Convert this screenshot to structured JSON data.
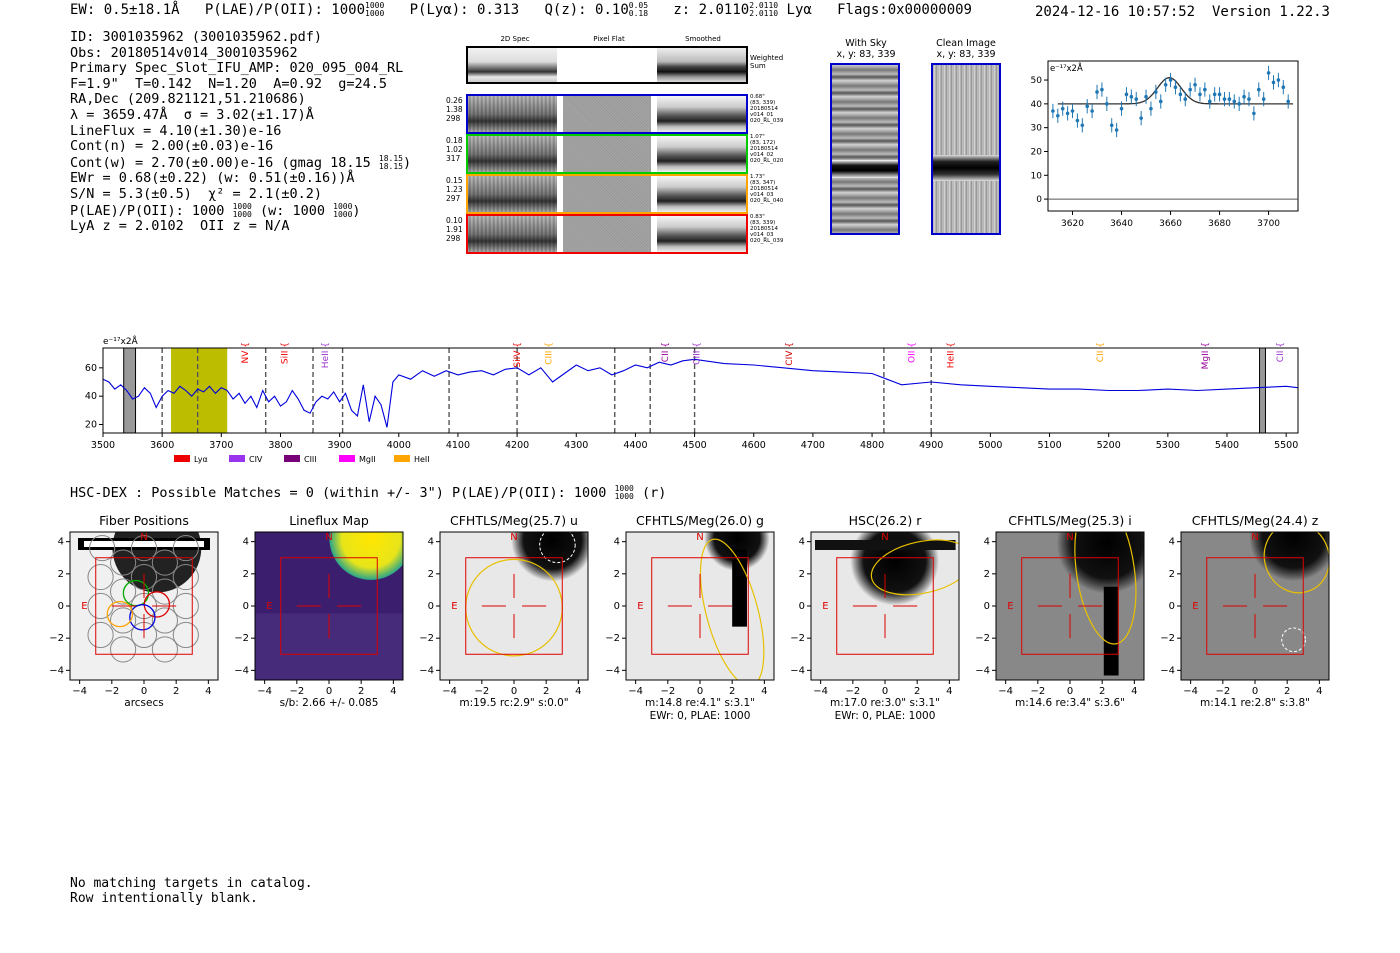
{
  "header": {
    "ew": "EW: 0.5±18.1Å",
    "plae_label": "P(LAE)/P(OII): 1000",
    "plae_hi": "1000",
    "plae_lo": "1000",
    "plya": "P(Lyα): 0.313",
    "qz_label": "Q(z): 0.10",
    "qz_hi": "0.05",
    "qz_lo": "0.18",
    "z_label": "z: 2.0110",
    "z_hi": "2.0110",
    "z_lo": "2.0110",
    "z_line": "Lyα",
    "flags": "Flags:0x00000009",
    "timestamp": "2024-12-16 10:57:52",
    "version": "Version 1.22.3"
  },
  "info": {
    "id": "ID: 3001035962 (3001035962.pdf)",
    "obs": "Obs: 20180514v014_3001035962",
    "primary": "Primary Spec_Slot_IFU_AMP: 020_095_004_RL",
    "params": "F=1.9\"  T=0.142  N=1.20  A=0.92  g=24.5",
    "radec": "RA,Dec (209.821121,51.210686)",
    "lambda": "λ = 3659.47Å  σ = 3.02(±1.17)Å",
    "lineflux": "LineFlux = 4.10(±1.30)e-16",
    "contn": "Cont(n) = 2.00(±0.03)e-16",
    "contw": "Cont(w) = 2.70(±0.00)e-16 (gmag 18.15",
    "contw_hi": "18.15",
    "contw_lo": "18.15",
    "contw_end": ")",
    "ewr": "EWr = 0.68(±0.22) (w: 0.51(±0.16))Å",
    "sn": "S/N = 5.3(±0.5)  χ² = 2.1(±0.2)",
    "plae": "P(LAE)/P(OII): 1000",
    "plae_hi": "1000",
    "plae_lo": "1000",
    "plae_w": "(w: 1000",
    "plae_w_hi": "1000",
    "plae_w_lo": "1000",
    "plae_w_end": ")",
    "lya": "LyA z = 2.0102  OII z = N/A"
  },
  "spec2d": {
    "columns": [
      "2D Spec",
      "Pixel Flat",
      "Smoothed"
    ],
    "weighted_sum": "Weighted\nSum",
    "rows": [
      {
        "left": "0.26\n1.38\n298",
        "right": "0.68\"\n(83, 339)\n20180514\nv014_01\n020_RL_039",
        "color": "#0000cc"
      },
      {
        "left": "0.18\n1.02\n317",
        "right": "1.07\"\n(83, 172)\n20180514\nv014_02\n020_RL_020",
        "color": "#00cc00"
      },
      {
        "left": "0.15\n1.23\n297",
        "right": "1.73\"\n(83, 347)\n20180514\nv014_03\n020_RL_040",
        "color": "#ffa500"
      },
      {
        "left": "0.10\n1.91\n298",
        "right": "0.83\"\n(83, 339)\n20180514\nv014_03\n020_RL_039",
        "color": "#ee0000"
      }
    ]
  },
  "sky": {
    "with_sky_title": "With Sky",
    "with_sky_xy": "x, y: 83, 339",
    "clean_title": "Clean Image",
    "clean_xy": "x, y: 83, 339"
  },
  "zoom_chart": {
    "type": "scatter",
    "ylabel": "e⁻¹⁷x2Å",
    "xlim": [
      3610,
      3712
    ],
    "ylim": [
      -5,
      58
    ],
    "xticks": [
      3620,
      3640,
      3660,
      3680,
      3700
    ],
    "yticks": [
      0,
      10,
      20,
      30,
      40,
      50
    ],
    "x": [
      3612,
      3614,
      3616,
      3618,
      3620,
      3622,
      3624,
      3626,
      3628,
      3630,
      3632,
      3634,
      3636,
      3638,
      3640,
      3642,
      3644,
      3646,
      3648,
      3650,
      3652,
      3654,
      3656,
      3658,
      3660,
      3662,
      3664,
      3666,
      3668,
      3670,
      3672,
      3674,
      3676,
      3678,
      3680,
      3682,
      3684,
      3686,
      3688,
      3690,
      3692,
      3694,
      3696,
      3698,
      3700,
      3702,
      3704,
      3706,
      3708
    ],
    "y": [
      37,
      35,
      38,
      36,
      37,
      33,
      31,
      39,
      37,
      45,
      46,
      40,
      31,
      29,
      38,
      44,
      43,
      42,
      34,
      43,
      38,
      45,
      41,
      48,
      50,
      47,
      44,
      42,
      46,
      48,
      44,
      46,
      41,
      44,
      44,
      42,
      42,
      41,
      40,
      43,
      42,
      36,
      46,
      42,
      53,
      49,
      50,
      47,
      41
    ],
    "fit_baseline": 40,
    "fit_center": 3659.5,
    "fit_amp": 11,
    "fit_sigma": 3.02
  },
  "chart_data": {
    "type": "line",
    "title": "",
    "ylabel": "e⁻¹⁷x2Å",
    "xlabel": "",
    "xlim": [
      3500,
      5520
    ],
    "ylim": [
      14,
      74
    ],
    "xticks": [
      3500,
      3600,
      3700,
      3800,
      3900,
      4000,
      4100,
      4200,
      4300,
      4400,
      4500,
      4600,
      4700,
      4800,
      4900,
      5000,
      5100,
      5200,
      5300,
      5400,
      5500
    ],
    "yticks": [
      20,
      40,
      60
    ],
    "x": [
      3500,
      3510,
      3520,
      3530,
      3540,
      3550,
      3560,
      3570,
      3580,
      3590,
      3600,
      3610,
      3620,
      3630,
      3640,
      3650,
      3660,
      3670,
      3680,
      3690,
      3700,
      3710,
      3720,
      3730,
      3740,
      3750,
      3760,
      3770,
      3780,
      3790,
      3800,
      3810,
      3820,
      3830,
      3840,
      3850,
      3860,
      3870,
      3880,
      3890,
      3900,
      3910,
      3920,
      3930,
      3940,
      3950,
      3960,
      3970,
      3980,
      3990,
      4000,
      4020,
      4040,
      4060,
      4080,
      4100,
      4120,
      4140,
      4160,
      4180,
      4200,
      4220,
      4240,
      4260,
      4280,
      4300,
      4320,
      4340,
      4360,
      4380,
      4400,
      4420,
      4440,
      4460,
      4480,
      4500,
      4550,
      4600,
      4650,
      4700,
      4750,
      4800,
      4850,
      4900,
      4950,
      5000,
      5050,
      5100,
      5150,
      5200,
      5250,
      5300,
      5350,
      5400,
      5450,
      5500,
      5520
    ],
    "y": [
      52,
      50,
      45,
      48,
      44,
      38,
      40,
      46,
      42,
      32,
      40,
      44,
      42,
      47,
      44,
      40,
      45,
      43,
      47,
      42,
      46,
      44,
      38,
      42,
      35,
      40,
      32,
      44,
      36,
      40,
      33,
      36,
      44,
      38,
      30,
      28,
      36,
      40,
      38,
      43,
      36,
      42,
      30,
      26,
      48,
      22,
      40,
      34,
      18,
      50,
      55,
      52,
      58,
      54,
      58,
      55,
      57,
      58,
      55,
      59,
      60,
      55,
      60,
      50,
      56,
      62,
      58,
      60,
      55,
      58,
      62,
      60,
      64,
      62,
      65,
      66,
      63,
      62,
      60,
      58,
      57,
      56,
      48,
      50,
      48,
      47,
      46,
      45,
      45,
      44,
      44,
      45,
      44,
      45,
      46,
      47,
      46
    ],
    "shaded_bands": [
      {
        "from": 3615,
        "to": 3710,
        "color": "#bcbd00"
      },
      {
        "from": 3535,
        "to": 3555,
        "color": "#999999"
      },
      {
        "from": 5455,
        "to": 5465,
        "color": "#999999"
      }
    ],
    "dashed_lines": [
      3600,
      3660,
      3775,
      3855,
      3905,
      4085,
      4200,
      4365,
      4425,
      4500,
      4820,
      4900
    ],
    "line_labels": [
      {
        "text": "NV",
        "x": 3745,
        "color": "#ee0000"
      },
      {
        "text": "SiII",
        "x": 3812,
        "color": "#ee0000"
      },
      {
        "text": "HeII",
        "x": 3880,
        "color": "#9933cc"
      },
      {
        "text": "SiIV",
        "x": 4205,
        "color": "#ee0000"
      },
      {
        "text": "CIII",
        "x": 4258,
        "color": "#ffa500"
      },
      {
        "text": "CII",
        "x": 4455,
        "color": "#990099"
      },
      {
        "text": "CIII",
        "x": 4508,
        "color": "#9933cc"
      },
      {
        "text": "CIV",
        "x": 4665,
        "color": "#cc0000"
      },
      {
        "text": "OII",
        "x": 4872,
        "color": "#ff00ff"
      },
      {
        "text": "HeII",
        "x": 4938,
        "color": "#ee0000"
      },
      {
        "text": "CII",
        "x": 5190,
        "color": "#ffa500"
      },
      {
        "text": "MgII",
        "x": 5368,
        "color": "#990099"
      },
      {
        "text": "CII",
        "x": 5495,
        "color": "#9933cc"
      }
    ],
    "legend": [
      {
        "label": "Lyα",
        "color": "#ee0000"
      },
      {
        "label": "CIV",
        "color": "#9933ee"
      },
      {
        "label": "CIII",
        "color": "#770077"
      },
      {
        "label": "MgII",
        "color": "#ff00ff"
      },
      {
        "label": "HeII",
        "color": "#ffa500"
      }
    ]
  },
  "hsc": {
    "title": "HSC-DEX : Possible Matches = 0 (within +/- 3\")  P(LAE)/P(OII): 1000",
    "title_hi": "1000",
    "title_lo": "1000",
    "title_end": "(r)"
  },
  "cutouts": [
    {
      "title": "Fiber Positions",
      "cap1": "arcsecs",
      "cap2": "",
      "bg": "fiber"
    },
    {
      "title": "Lineflux Map",
      "cap1": "s/b: 2.66 +/- 0.085",
      "cap2": "",
      "bg": "flux"
    },
    {
      "title": "CFHTLS/Meg(25.7) u",
      "cap1": "m:19.5 rc:2.9\"  s:0.0\"",
      "cap2": "",
      "bg": "u"
    },
    {
      "title": "CFHTLS/Meg(26.0) g",
      "cap1": "m:14.8  re:4.1\"  s:3.1\"",
      "cap2": "EWr: 0, PLAE: 1000",
      "bg": "g"
    },
    {
      "title": "HSC(26.2) r",
      "cap1": "m:17.0  re:3.0\"  s:3.1\"",
      "cap2": "EWr: 0, PLAE: 1000",
      "bg": "r"
    },
    {
      "title": "CFHTLS/Meg(25.3) i",
      "cap1": "m:14.6  re:3.4\"  s:3.6\"",
      "cap2": "",
      "bg": "i"
    },
    {
      "title": "CFHTLS/Meg(24.4) z",
      "cap1": "m:14.1  re:2.8\"  s:3.8\"",
      "cap2": "",
      "bg": "z"
    }
  ],
  "cutout_axes": {
    "ticks": [
      -4,
      -2,
      0,
      2,
      4
    ],
    "tick_labels": [
      "−4",
      "−2",
      "0",
      "2",
      "4"
    ],
    "north": "N",
    "east": "E"
  },
  "footer": {
    "line1": "No matching targets in catalog.",
    "line2": "Row intentionally blank."
  }
}
